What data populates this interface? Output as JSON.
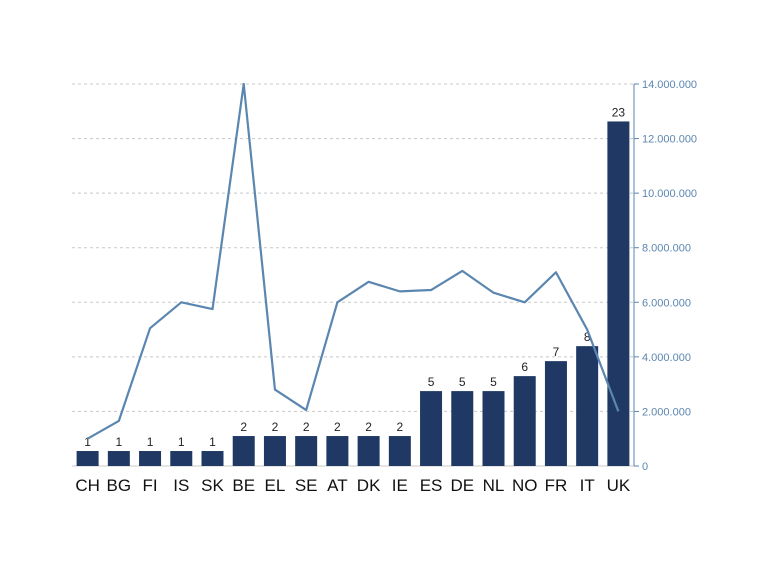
{
  "chart_data": {
    "type": "bar",
    "categories": [
      "CH",
      "BG",
      "FI",
      "IS",
      "SK",
      "BE",
      "EL",
      "SE",
      "AT",
      "DK",
      "IE",
      "ES",
      "DE",
      "NL",
      "NO",
      "FR",
      "IT",
      "UK"
    ],
    "series": [
      {
        "type": "bar",
        "axis": "left",
        "values": [
          1,
          1,
          1,
          1,
          1,
          2,
          2,
          2,
          2,
          2,
          2,
          5,
          5,
          5,
          6,
          7,
          8,
          23
        ],
        "color": "#1f3864"
      },
      {
        "type": "line",
        "axis": "right",
        "values": [
          1000000,
          1650000,
          5050000,
          6000000,
          5750000,
          14000000,
          2800000,
          2050000,
          6000000,
          6750000,
          6400000,
          6450000,
          7150000,
          6350000,
          6000000,
          7100000,
          5000000,
          2000000
        ],
        "color": "#5b86b0"
      }
    ],
    "bar_labels": [
      "1",
      "1",
      "1",
      "1",
      "1",
      "2",
      "2",
      "2",
      "2",
      "2",
      "2",
      "5",
      "5",
      "5",
      "6",
      "7",
      "8",
      "23"
    ],
    "y_left_range": [
      0,
      25.5
    ],
    "y_right_range": [
      0,
      14000000
    ],
    "y_right_ticks": [
      0,
      2000000,
      4000000,
      6000000,
      8000000,
      10000000,
      12000000,
      14000000
    ],
    "y_right_tick_labels": [
      "0",
      "2.000.000",
      "4.000.000",
      "6.000.000",
      "8.000.000",
      "10.000.000",
      "12.000.000",
      "14.000.000"
    ],
    "grid": "horizontal-dashed",
    "axis_color": "#5b86b0"
  }
}
